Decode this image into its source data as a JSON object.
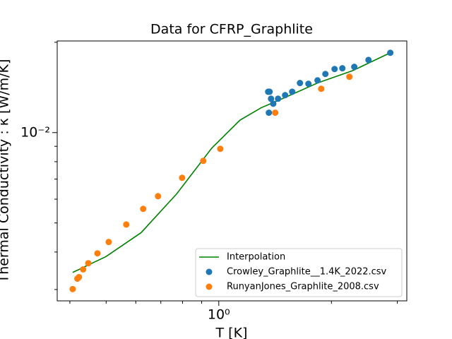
{
  "chart_data": {
    "type": "scatter",
    "title": "Data for CFRP_Graphlite",
    "x_label": "T [K]",
    "y_label": "Thermal Conductivity : κ [W/m/K]",
    "x_scale": "log",
    "y_scale": "log",
    "xlim": [
      0.37,
      3.18
    ],
    "ylim": [
      0.00275,
      0.0202
    ],
    "xticks": [
      {
        "value": 1,
        "label": "10⁰"
      }
    ],
    "x_minor_ticks": [
      0.4,
      0.5,
      0.6,
      0.7,
      0.8,
      0.9,
      2,
      3
    ],
    "yticks": [
      {
        "value": 0.01,
        "label": "10⁻²"
      }
    ],
    "y_minor_ticks": [
      0.003,
      0.004,
      0.005,
      0.006,
      0.007,
      0.008,
      0.009,
      0.02
    ],
    "legend": "lower right",
    "series": [
      {
        "name": "Interpolation",
        "style": "line",
        "color": "#008000",
        "x": [
          0.407,
          0.499,
          0.62,
          0.771,
          0.957,
          1.139,
          1.298,
          1.478,
          1.836,
          2.283,
          2.873
        ],
        "values": [
          0.00342,
          0.00386,
          0.00464,
          0.00624,
          0.00887,
          0.011,
          0.0121,
          0.01297,
          0.01463,
          0.0161,
          0.01845
        ]
      },
      {
        "name": "Crowley_Graphlite__1.4K_2022.csv",
        "style": "marker",
        "color": "#1f77b4",
        "x": [
          1.355,
          1.367,
          1.361,
          1.379,
          1.398,
          1.44,
          1.504,
          1.571,
          1.648,
          1.736,
          1.836,
          1.927,
          2.039,
          2.139,
          2.302,
          2.512,
          2.873
        ],
        "values": [
          0.01368,
          0.01368,
          0.01165,
          0.01297,
          0.01248,
          0.01297,
          0.01333,
          0.01368,
          0.01463,
          0.01454,
          0.01493,
          0.01568,
          0.01629,
          0.01638,
          0.01656,
          0.01746,
          0.01845
        ]
      },
      {
        "name": "RunyanJones_Graphlite_2008.csv",
        "style": "marker",
        "color": "#ff7f0e",
        "x": [
          0.407,
          0.419,
          0.423,
          0.434,
          0.448,
          0.474,
          0.508,
          0.566,
          0.628,
          0.688,
          0.798,
          0.909,
          1.009,
          1.415,
          1.878,
          2.234
        ],
        "values": [
          0.00301,
          0.00326,
          0.0033,
          0.0035,
          0.00367,
          0.00396,
          0.00432,
          0.00494,
          0.00557,
          0.00614,
          0.00707,
          0.00805,
          0.00883,
          0.01165,
          0.014,
          0.01535
        ]
      }
    ]
  }
}
